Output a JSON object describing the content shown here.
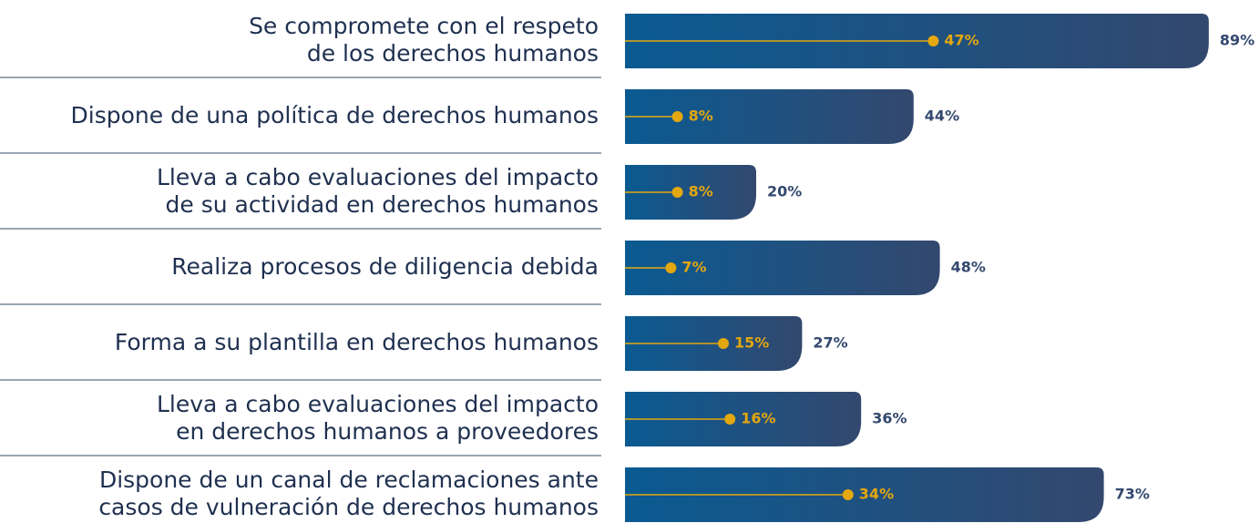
{
  "chart_data": {
    "type": "bar",
    "categories": [
      [
        "Se compromete con el respeto",
        "de los derechos humanos"
      ],
      [
        "Dispone de una política de derechos humanos"
      ],
      [
        "Lleva a cabo evaluaciones del impacto",
        "de su actividad en derechos humanos"
      ],
      [
        "Realiza procesos de diligencia debida"
      ],
      [
        "Forma a su plantilla en derechos humanos"
      ],
      [
        "Lleva a cabo evaluaciones del impacto",
        "en derechos humanos a proveedores"
      ],
      [
        "Dispone de un canal de reclamaciones ante",
        "casos de vulneración de derechos humanos"
      ]
    ],
    "series": [
      {
        "color": "#0a5a92",
        "values": [
          89,
          44,
          20,
          48,
          27,
          36,
          73
        ],
        "value_labels": [
          "89%",
          "44%",
          "20%",
          "48%",
          "27%",
          "36%",
          "73%"
        ]
      },
      {
        "color": "#e3a70f",
        "values": [
          47,
          8,
          8,
          7,
          15,
          16,
          34
        ],
        "value_labels": [
          "47%",
          "8%",
          "8%",
          "7%",
          "15%",
          "16%",
          "34%"
        ]
      }
    ],
    "xlim": [
      0,
      100
    ]
  }
}
